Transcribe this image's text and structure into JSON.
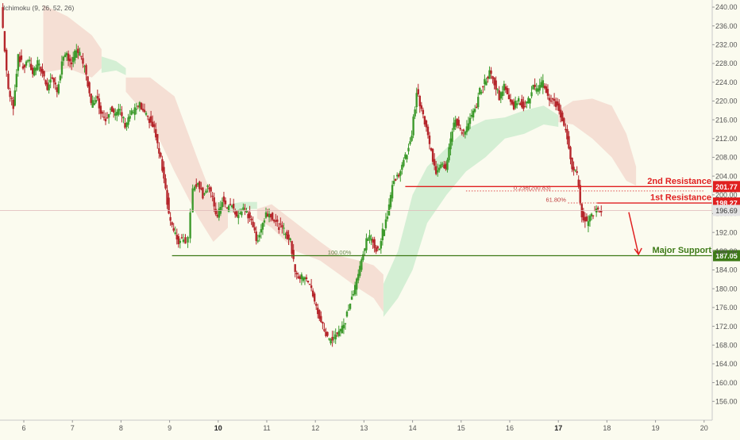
{
  "indicator_label": "Ichimoku (9, 26, 52, 26)",
  "colors": {
    "background": "#fbfbef",
    "candle_up": "#3d9a2c",
    "candle_down": "#b5262b",
    "cloud_bull": "#cdeccf",
    "cloud_bear": "#f3d9cf",
    "resistance": "#e02020",
    "support": "#3d7a17",
    "price_tag": "#c8c8c8",
    "axis_text": "#555555"
  },
  "chart_data": {
    "type": "candlestick",
    "title": "",
    "xlabel": "",
    "ylabel": "",
    "x_ticks": [
      "6",
      "7",
      "8",
      "9",
      "10",
      "11",
      "12",
      "13",
      "14",
      "15",
      "16",
      "17",
      "18",
      "19",
      "20"
    ],
    "x_ticks_bold": [
      "10",
      "17"
    ],
    "y_ticks": [
      156,
      160,
      164,
      168,
      172,
      176,
      180,
      184,
      188,
      192,
      196,
      200,
      204,
      208,
      212,
      216,
      220,
      224,
      228,
      232,
      236,
      240
    ],
    "ylim": [
      153.5,
      241.5
    ],
    "xlim": [
      5.6,
      20.1
    ],
    "levels": [
      {
        "name": "2nd Resistance",
        "label": "2nd Resistance",
        "value": 201.77,
        "value_text": "201.77",
        "x_start": 13.85,
        "color": "resistance"
      },
      {
        "name": "1st Resistance",
        "label": "1st Resistance",
        "value": 198.27,
        "value_text": "198.27",
        "x_start": 17.8,
        "color": "resistance"
      },
      {
        "name": "Major Support",
        "label": "Major Support",
        "value": 187.05,
        "value_text": "187.05",
        "x_start": 9.05,
        "color": "support"
      }
    ],
    "fib_levels": [
      {
        "label": "0.236(200.83)",
        "value": 200.83,
        "x_start": 15.1,
        "x_end": 20.0
      },
      {
        "label": "61.80%",
        "value": 198.27,
        "x_start": 17.2,
        "x_end": 17.8
      },
      {
        "label": "100.00%",
        "value": 187.05,
        "x_start": 12.5,
        "x_end": 13.1
      }
    ],
    "last_price": {
      "value": 196.69,
      "text": "196.69"
    },
    "projection_arrow": {
      "from": [
        18.45,
        196.3
      ],
      "to": [
        18.65,
        187.3
      ]
    },
    "close_series": [
      [
        5.55,
        240.0
      ],
      [
        5.7,
        222.0
      ],
      [
        5.8,
        219.0
      ],
      [
        5.9,
        230.0
      ],
      [
        6.0,
        227.0
      ],
      [
        6.1,
        229.0
      ],
      [
        6.2,
        226.0
      ],
      [
        6.3,
        228.0
      ],
      [
        6.4,
        226.0
      ],
      [
        6.5,
        223.0
      ],
      [
        6.6,
        225.0
      ],
      [
        6.7,
        222.0
      ],
      [
        6.8,
        228.0
      ],
      [
        6.9,
        230.0
      ],
      [
        7.0,
        228.0
      ],
      [
        7.1,
        231.0
      ],
      [
        7.2,
        229.0
      ],
      [
        7.3,
        226.0
      ],
      [
        7.4,
        219.0
      ],
      [
        7.5,
        221.0
      ],
      [
        7.6,
        218.0
      ],
      [
        7.7,
        216.0
      ],
      [
        7.8,
        219.0
      ],
      [
        7.9,
        217.0
      ],
      [
        8.0,
        218.0
      ],
      [
        8.1,
        215.0
      ],
      [
        8.2,
        217.0
      ],
      [
        8.3,
        218.0
      ],
      [
        8.4,
        219.0
      ],
      [
        8.5,
        217.0
      ],
      [
        8.6,
        216.0
      ],
      [
        8.7,
        214.0
      ],
      [
        8.8,
        209.0
      ],
      [
        8.9,
        204.0
      ],
      [
        9.0,
        196.0
      ],
      [
        9.1,
        192.0
      ],
      [
        9.2,
        190.0
      ],
      [
        9.3,
        191.0
      ],
      [
        9.35,
        190.0
      ],
      [
        9.4,
        191.0
      ],
      [
        9.45,
        197.0
      ],
      [
        9.5,
        201.0
      ],
      [
        9.6,
        203.0
      ],
      [
        9.7,
        200.0
      ],
      [
        9.8,
        202.0
      ],
      [
        9.9,
        199.0
      ],
      [
        10.0,
        195.0
      ],
      [
        10.1,
        199.0
      ],
      [
        10.2,
        197.0
      ],
      [
        10.3,
        198.0
      ],
      [
        10.4,
        195.0
      ],
      [
        10.5,
        197.0
      ],
      [
        10.6,
        196.0
      ],
      [
        10.7,
        195.0
      ],
      [
        10.8,
        190.0
      ],
      [
        10.9,
        193.0
      ],
      [
        11.0,
        196.0
      ],
      [
        11.1,
        196.0
      ],
      [
        11.2,
        194.0
      ],
      [
        11.3,
        193.0
      ],
      [
        11.4,
        192.0
      ],
      [
        11.5,
        190.0
      ],
      [
        11.6,
        184.0
      ],
      [
        11.7,
        182.0
      ],
      [
        11.8,
        183.0
      ],
      [
        11.9,
        181.0
      ],
      [
        12.0,
        177.0
      ],
      [
        12.1,
        174.0
      ],
      [
        12.2,
        171.0
      ],
      [
        12.3,
        169.0
      ],
      [
        12.4,
        170.0
      ],
      [
        12.5,
        171.0
      ],
      [
        12.6,
        172.0
      ],
      [
        12.7,
        176.0
      ],
      [
        12.8,
        179.0
      ],
      [
        12.9,
        183.0
      ],
      [
        13.0,
        188.0
      ],
      [
        13.1,
        191.0
      ],
      [
        13.2,
        190.0
      ],
      [
        13.3,
        188.0
      ],
      [
        13.4,
        192.0
      ],
      [
        13.5,
        196.0
      ],
      [
        13.6,
        202.0
      ],
      [
        13.7,
        204.0
      ],
      [
        13.8,
        206.0
      ],
      [
        13.9,
        209.0
      ],
      [
        14.0,
        213.0
      ],
      [
        14.1,
        222.0
      ],
      [
        14.2,
        218.0
      ],
      [
        14.3,
        214.0
      ],
      [
        14.4,
        209.0
      ],
      [
        14.5,
        205.0
      ],
      [
        14.6,
        207.0
      ],
      [
        14.7,
        206.0
      ],
      [
        14.8,
        212.0
      ],
      [
        14.9,
        216.0
      ],
      [
        15.0,
        214.0
      ],
      [
        15.1,
        213.0
      ],
      [
        15.2,
        216.0
      ],
      [
        15.3,
        218.0
      ],
      [
        15.4,
        222.0
      ],
      [
        15.5,
        224.0
      ],
      [
        15.6,
        226.0
      ],
      [
        15.7,
        224.0
      ],
      [
        15.8,
        221.0
      ],
      [
        15.9,
        223.0
      ],
      [
        16.0,
        221.0
      ],
      [
        16.1,
        219.0
      ],
      [
        16.2,
        220.0
      ],
      [
        16.3,
        219.0
      ],
      [
        16.4,
        220.0
      ],
      [
        16.5,
        223.0
      ],
      [
        16.6,
        222.0
      ],
      [
        16.7,
        224.0
      ],
      [
        16.8,
        221.0
      ],
      [
        16.9,
        220.0
      ],
      [
        17.0,
        219.0
      ],
      [
        17.1,
        216.0
      ],
      [
        17.2,
        212.0
      ],
      [
        17.3,
        206.0
      ],
      [
        17.4,
        204.0
      ],
      [
        17.5,
        196.0
      ],
      [
        17.6,
        194.0
      ],
      [
        17.7,
        196.0
      ],
      [
        17.8,
        197.0
      ],
      [
        17.9,
        196.69
      ]
    ],
    "cloud_segments": [
      {
        "kind": "bear",
        "points": [
          [
            6.4,
            240.5,
            226.0
          ],
          [
            6.9,
            238.0,
            227.0
          ],
          [
            7.4,
            234.0,
            225.0
          ],
          [
            7.6,
            231.0,
            227.0
          ]
        ]
      },
      {
        "kind": "bull",
        "points": [
          [
            7.6,
            229.5,
            226.0
          ],
          [
            7.9,
            228.5,
            226.5
          ],
          [
            8.1,
            227.0,
            225.5
          ]
        ]
      },
      {
        "kind": "bear",
        "points": [
          [
            8.1,
            225.0,
            222.0
          ],
          [
            8.6,
            225.0,
            216.0
          ],
          [
            9.1,
            221.0,
            205.0
          ],
          [
            9.6,
            207.0,
            195.0
          ],
          [
            9.9,
            199.0,
            190.0
          ],
          [
            10.2,
            197.0,
            193.0
          ]
        ]
      },
      {
        "kind": "bull",
        "points": [
          [
            10.2,
            198.0,
            196.0
          ],
          [
            10.5,
            198.5,
            197.0
          ],
          [
            10.8,
            198.5,
            197.0
          ]
        ]
      },
      {
        "kind": "bear",
        "points": [
          [
            10.8,
            197.0,
            195.0
          ],
          [
            11.1,
            198.0,
            193.0
          ],
          [
            11.6,
            194.0,
            188.0
          ],
          [
            12.1,
            190.0,
            186.0
          ],
          [
            12.5,
            187.0,
            183.0
          ],
          [
            12.9,
            186.0,
            180.0
          ],
          [
            13.2,
            185.0,
            178.0
          ],
          [
            13.4,
            183.0,
            175.0
          ]
        ]
      },
      {
        "kind": "bull",
        "points": [
          [
            13.4,
            181.0,
            174.0
          ],
          [
            13.7,
            188.0,
            178.0
          ],
          [
            14.0,
            200.0,
            184.0
          ],
          [
            14.3,
            206.0,
            194.0
          ],
          [
            14.7,
            210.0,
            200.0
          ],
          [
            15.1,
            214.0,
            205.0
          ],
          [
            15.5,
            216.0,
            208.0
          ],
          [
            15.9,
            216.5,
            212.0
          ],
          [
            16.3,
            218.0,
            213.0
          ],
          [
            16.7,
            219.0,
            215.0
          ],
          [
            17.0,
            217.0,
            214.5
          ]
        ]
      },
      {
        "kind": "bear",
        "points": [
          [
            17.0,
            218.0,
            215.5
          ],
          [
            17.3,
            220.0,
            215.0
          ],
          [
            17.7,
            220.5,
            212.0
          ],
          [
            18.1,
            219.0,
            208.0
          ],
          [
            18.4,
            213.0,
            203.0
          ],
          [
            18.6,
            206.0,
            202.0
          ]
        ]
      }
    ]
  }
}
